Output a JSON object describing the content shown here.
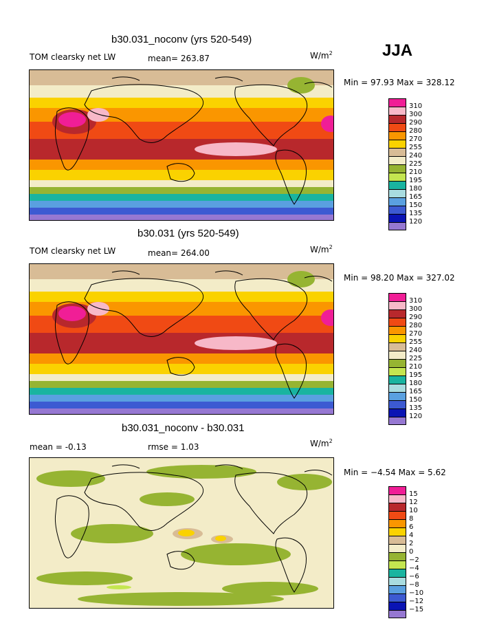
{
  "season": "JJA",
  "units_base": "W/m",
  "units_exp": "2",
  "panels": [
    {
      "title": "b30.031_noconv (yrs 520-549)",
      "left_label": "TOM clearsky net LW",
      "mid_label": "mean= 263.87",
      "minmax": "Min =   97.93 Max = 328.12"
    },
    {
      "title": "b30.031 (yrs 520-549)",
      "left_label": "TOM clearsky net LW",
      "mid_label": "mean= 264.00",
      "minmax": "Min =   98.20 Max = 327.02"
    },
    {
      "title": "b30.031_noconv - b30.031",
      "left_label": "mean =   -0.13",
      "mid_label": "rmse =    1.03",
      "minmax": "Min =  −4.54 Max =    5.62"
    }
  ],
  "chart_data": [
    {
      "type": "heatmap",
      "title": "b30.031_noconv (yrs 520-549)",
      "field": "TOM clearsky net LW",
      "units": "W/m2",
      "mean": 263.87,
      "min": 97.93,
      "max": 328.12,
      "legend_levels": [
        "310",
        "300",
        "290",
        "280",
        "270",
        "255",
        "240",
        "225",
        "210",
        "195",
        "180",
        "165",
        "150",
        "135",
        "120"
      ],
      "legend_colors": [
        "#f01e96",
        "#f7b8c8",
        "#b8282c",
        "#f04a14",
        "#fa9600",
        "#fad200",
        "#d8bc96",
        "#f3ecc8",
        "#96b432",
        "#c4e650",
        "#19b4a0",
        "#a8dce0",
        "#5aa0e0",
        "#3c5ad2",
        "#0a14b4",
        "#9678d2"
      ]
    },
    {
      "type": "heatmap",
      "title": "b30.031 (yrs 520-549)",
      "field": "TOM clearsky net LW",
      "units": "W/m2",
      "mean": 264.0,
      "min": 98.2,
      "max": 327.02,
      "legend_levels": [
        "310",
        "300",
        "290",
        "280",
        "270",
        "255",
        "240",
        "225",
        "210",
        "195",
        "180",
        "165",
        "150",
        "135",
        "120"
      ],
      "legend_colors": [
        "#f01e96",
        "#f7b8c8",
        "#b8282c",
        "#f04a14",
        "#fa9600",
        "#fad200",
        "#d8bc96",
        "#f3ecc8",
        "#96b432",
        "#c4e650",
        "#19b4a0",
        "#a8dce0",
        "#5aa0e0",
        "#3c5ad2",
        "#0a14b4",
        "#9678d2"
      ]
    },
    {
      "type": "heatmap",
      "title": "b30.031_noconv - b30.031",
      "units": "W/m2",
      "mean": -0.13,
      "rmse": 1.03,
      "min": -4.54,
      "max": 5.62,
      "legend_levels": [
        "15",
        "12",
        "10",
        "8",
        "6",
        "4",
        "2",
        "0",
        "−2",
        "−4",
        "−6",
        "−8",
        "−10",
        "−12",
        "−15"
      ],
      "legend_colors": [
        "#f01e96",
        "#f7b8c8",
        "#b8282c",
        "#f04a14",
        "#fa9600",
        "#fad200",
        "#d8bc96",
        "#f3ecc8",
        "#96b432",
        "#c4e650",
        "#19b4a0",
        "#a8dce0",
        "#5aa0e0",
        "#3c5ad2",
        "#0a14b4",
        "#9678d2"
      ]
    }
  ]
}
